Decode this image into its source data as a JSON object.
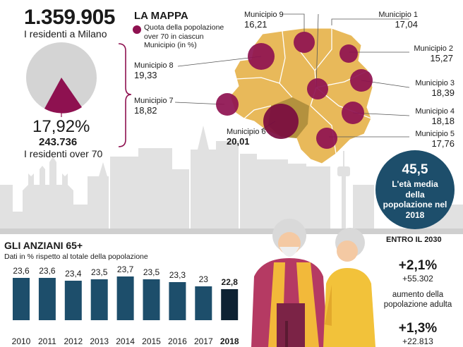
{
  "summary": {
    "total_residents": "1.359.905",
    "total_label": "I residenti a Milano",
    "over70_percent": "17,92%",
    "over70_count": "243.736",
    "over70_label": "I residenti over 70"
  },
  "map": {
    "title": "LA MAPPA",
    "legend_line1": "Quota della popolazione",
    "legend_line2": "over 70 in ciascun",
    "legend_line3": "Municipio (in %)",
    "municipi": [
      {
        "name": "Municipio 1",
        "value": "17,04"
      },
      {
        "name": "Municipio 2",
        "value": "15,27"
      },
      {
        "name": "Municipio 3",
        "value": "18,39"
      },
      {
        "name": "Municipio 4",
        "value": "18,18"
      },
      {
        "name": "Municipio 5",
        "value": "17,76"
      },
      {
        "name": "Municipio 6",
        "value": "20,01"
      },
      {
        "name": "Municipio 7",
        "value": "18,82"
      },
      {
        "name": "Municipio 8",
        "value": "19,33"
      },
      {
        "name": "Municipio 9",
        "value": "16,21"
      }
    ]
  },
  "average_age": {
    "value": "45,5",
    "label": "L'età media della popolazione nel 2018"
  },
  "chart_data": {
    "type": "bar",
    "title": "GLI ANZIANI 65+",
    "subtitle": "Dati in % rispetto al totale della popolazione",
    "categories": [
      "2010",
      "2011",
      "2012",
      "2013",
      "2014",
      "2015",
      "2016",
      "2017",
      "2018"
    ],
    "values": [
      23.6,
      23.6,
      23.4,
      23.5,
      23.7,
      23.5,
      23.3,
      23.0,
      22.8
    ],
    "value_labels": [
      "23,6",
      "23,6",
      "23,4",
      "23,5",
      "23,7",
      "23,5",
      "23,3",
      "23",
      "22,8"
    ],
    "highlight_index": 8,
    "xlabel": "",
    "ylabel": ""
  },
  "projection": {
    "title": "ENTRO IL 2030",
    "adult_pct": "+2,1%",
    "adult_count": "+55.302",
    "adult_desc": "aumento della popolazione adulta",
    "second_pct": "+1,3%",
    "second_count": "+22.813"
  },
  "colors": {
    "bar": "#1d4e6b",
    "bar_highlight": "#0e2233",
    "map_fill": "#e8b95a",
    "dot": "#8e1150",
    "pie_bg": "#d4d4d4",
    "skyline": "#dcdcdc"
  }
}
